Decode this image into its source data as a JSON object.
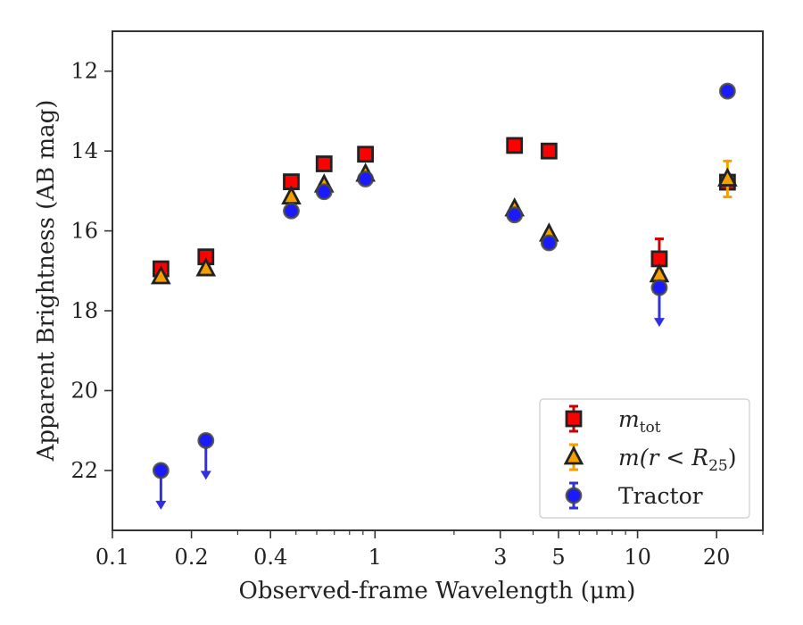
{
  "chart_data": {
    "type": "scatter",
    "title": "",
    "xlabel": "Observed-frame Wavelength (μm)",
    "ylabel": "Apparent Brightness (AB mag)",
    "xscale": "log",
    "xlim": [
      0.1,
      30
    ],
    "ylim": [
      23.5,
      11
    ],
    "y_inverted": true,
    "x_ticks": [
      0.1,
      0.2,
      0.4,
      1,
      3,
      5,
      10,
      20
    ],
    "x_tick_labels": [
      "0.1",
      "0.2",
      "0.4",
      "1",
      "3",
      "5",
      "10",
      "20"
    ],
    "y_ticks": [
      12,
      14,
      16,
      18,
      20,
      22
    ],
    "y_tick_labels": [
      "12",
      "14",
      "16",
      "18",
      "20",
      "22"
    ],
    "legend_position": "lower-right",
    "series": [
      {
        "name": "m_tot",
        "legend_main": "m",
        "legend_sub": "tot",
        "marker": "square",
        "face_color": "#ff0000",
        "edge_color": "#222222",
        "err_color": "#cc0000",
        "points": [
          {
            "x": 0.153,
            "y": 16.95,
            "err": 0.1
          },
          {
            "x": 0.227,
            "y": 16.65,
            "err": 0.1
          },
          {
            "x": 0.48,
            "y": 14.77,
            "err": 0.05
          },
          {
            "x": 0.64,
            "y": 14.32,
            "err": 0.05
          },
          {
            "x": 0.92,
            "y": 14.08,
            "err": 0.05
          },
          {
            "x": 3.4,
            "y": 13.86,
            "err": 0.05
          },
          {
            "x": 4.6,
            "y": 14.0,
            "err": 0.05
          },
          {
            "x": 12.1,
            "y": 16.7,
            "err": 0.5
          },
          {
            "x": 22.0,
            "y": 14.78,
            "err": 0.1
          }
        ]
      },
      {
        "name": "m(r < R_25)",
        "legend_main": "m(r < R",
        "legend_sub": "25",
        "legend_tail": ")",
        "marker": "triangle",
        "face_color": "#f5a000",
        "edge_color": "#222222",
        "err_color": "#f5a000",
        "points": [
          {
            "x": 0.153,
            "y": 17.15,
            "err": 0.05
          },
          {
            "x": 0.227,
            "y": 16.95,
            "err": 0.05
          },
          {
            "x": 0.48,
            "y": 15.15,
            "err": 0.05
          },
          {
            "x": 0.64,
            "y": 14.85,
            "err": 0.05
          },
          {
            "x": 0.92,
            "y": 14.58,
            "err": 0.05
          },
          {
            "x": 3.4,
            "y": 15.45,
            "err": 0.05
          },
          {
            "x": 4.6,
            "y": 16.08,
            "err": 0.05
          },
          {
            "x": 12.1,
            "y": 17.1,
            "err": 0.1
          },
          {
            "x": 22.0,
            "y": 14.7,
            "err": 0.45
          }
        ]
      },
      {
        "name": "Tractor",
        "marker": "circle",
        "face_color": "#1a1aff",
        "edge_color": "#444444",
        "err_color": "#3030dd",
        "points": [
          {
            "x": 0.153,
            "y": 22.0,
            "upper_limit": true
          },
          {
            "x": 0.227,
            "y": 21.25,
            "upper_limit": true
          },
          {
            "x": 0.48,
            "y": 15.5,
            "err": 0.05
          },
          {
            "x": 0.64,
            "y": 15.02,
            "err": 0.05
          },
          {
            "x": 0.92,
            "y": 14.7,
            "err": 0.05
          },
          {
            "x": 3.4,
            "y": 15.6,
            "err": 0.05
          },
          {
            "x": 4.6,
            "y": 16.3,
            "err": 0.05
          },
          {
            "x": 12.1,
            "y": 17.42,
            "upper_limit": true
          },
          {
            "x": 22.0,
            "y": 12.5,
            "err": 0.05
          }
        ]
      }
    ]
  }
}
